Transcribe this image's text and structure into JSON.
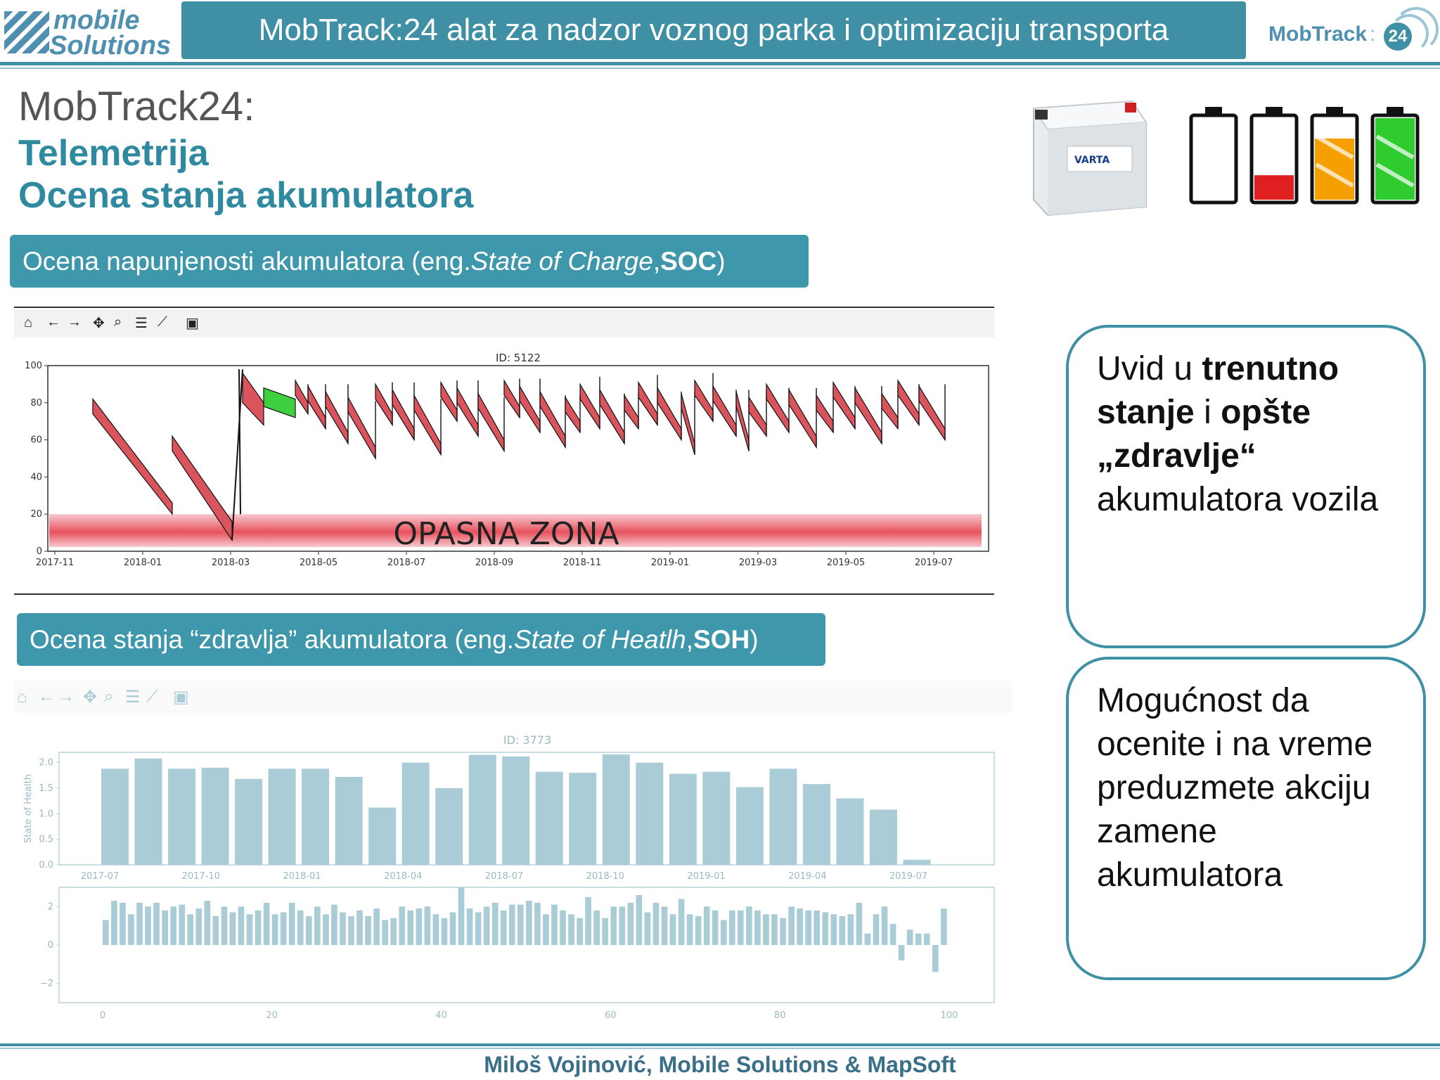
{
  "header": {
    "logo_left_line1": "mobile",
    "logo_left_line2": "Solutions",
    "title": "MobTrack:24 alat za nadzor voznog parka i optimizaciju transporta",
    "logo_right_text": "MobTrack",
    "logo_right_badge": "24"
  },
  "titles": {
    "main": "MobTrack24:",
    "sub1": "Telemetrija",
    "sub2": "Ocena stanja akumulatora"
  },
  "soc_banner": {
    "prefix": "Ocena napunjenosti akumulatora (eng. ",
    "italic": "State of Charge",
    "sep": ", ",
    "bold": "SOC",
    "suffix": ")"
  },
  "soh_banner": {
    "prefix": "Ocena stanja “zdravlja” akumulatora (eng. ",
    "italic": "State of Heatlh",
    "sep": ", ",
    "bold": "SOH",
    "suffix": ")"
  },
  "battery_image": {
    "brand": "VARTA"
  },
  "battery_levels": [
    {
      "level": 0,
      "color": "#ffffff"
    },
    {
      "level": 0.3,
      "color": "#e02020"
    },
    {
      "level": 0.75,
      "color": "#f5a000"
    },
    {
      "level": 1.0,
      "color": "#2fcc2f"
    }
  ],
  "box1": {
    "t1": "Uvid u ",
    "b1": "trenutno stanje",
    "t2": " i ",
    "b2": "opšte „zdravlje“",
    "t3": " akumulatora vozila"
  },
  "box2": {
    "text": "Mogućnost da ocenite i na vreme preduzmete akciju zamene akumulatora"
  },
  "footer": "Miloš Vojinović, Mobile Solutions & MapSoft",
  "chart_data": [
    {
      "type": "area",
      "title": "ID: 5122",
      "x_ticks": [
        "2017-11",
        "2018-01",
        "2018-03",
        "2018-05",
        "2018-07",
        "2018-09",
        "2018-11",
        "2019-01",
        "2019-03",
        "2019-05",
        "2019-07"
      ],
      "y_ticks": [
        0,
        20,
        40,
        60,
        80,
        100
      ],
      "ylim": [
        0,
        100
      ],
      "zone_label": "OPASNA ZONA",
      "zone_range": [
        0,
        20
      ],
      "grid": false
    },
    {
      "type": "bar",
      "title": "ID: 3773",
      "ylabel": "State of Health",
      "x_ticks": [
        "2017-07",
        "2017-10",
        "2018-01",
        "2018-04",
        "2018-07",
        "2018-10",
        "2019-01",
        "2019-04",
        "2019-07"
      ],
      "y_ticks": [
        "0.0",
        "0.5",
        "1.0",
        "1.5",
        "2.0"
      ],
      "ylim": [
        0,
        2.2
      ],
      "values": [
        1.88,
        2.08,
        1.88,
        1.9,
        1.68,
        1.88,
        1.88,
        1.72,
        1.12,
        2.0,
        1.5,
        2.15,
        2.12,
        1.82,
        1.8,
        2.16,
        2.0,
        1.78,
        1.82,
        1.52,
        1.88,
        1.58,
        1.3,
        1.08,
        0.1
      ],
      "color": "#a9ccd6"
    },
    {
      "type": "bar",
      "x_ticks": [
        "0",
        "20",
        "40",
        "60",
        "80",
        "100"
      ],
      "y_ticks": [
        "−2",
        "0",
        "2"
      ],
      "ylim": [
        -3,
        3
      ],
      "values": [
        1.3,
        2.3,
        2.2,
        1.6,
        2.2,
        2.0,
        2.2,
        1.8,
        2.0,
        2.1,
        1.6,
        1.9,
        2.3,
        1.5,
        2.0,
        1.7,
        2.0,
        1.6,
        1.8,
        2.2,
        1.6,
        1.7,
        2.2,
        1.8,
        1.5,
        2.0,
        1.6,
        2.1,
        1.7,
        1.5,
        1.8,
        1.5,
        1.9,
        1.3,
        1.4,
        2.0,
        1.8,
        1.9,
        2.0,
        1.6,
        1.4,
        1.7,
        3.0,
        1.9,
        1.7,
        2.0,
        2.2,
        1.8,
        2.1,
        2.1,
        2.3,
        2.2,
        1.6,
        2.1,
        1.8,
        1.6,
        1.4,
        2.5,
        1.8,
        1.4,
        2.0,
        2.0,
        2.2,
        2.6,
        1.7,
        2.2,
        2.0,
        1.6,
        2.4,
        1.6,
        1.5,
        2.0,
        1.8,
        1.3,
        1.8,
        1.8,
        2.0,
        1.8,
        1.6,
        1.6,
        1.4,
        2.0,
        1.9,
        1.8,
        1.8,
        1.7,
        1.6,
        1.5,
        1.6,
        2.2,
        0.6,
        1.6,
        2.0,
        1.1,
        -0.8,
        0.8,
        0.6,
        0.6,
        -1.4,
        1.9
      ],
      "color": "#a9ccd6"
    }
  ]
}
